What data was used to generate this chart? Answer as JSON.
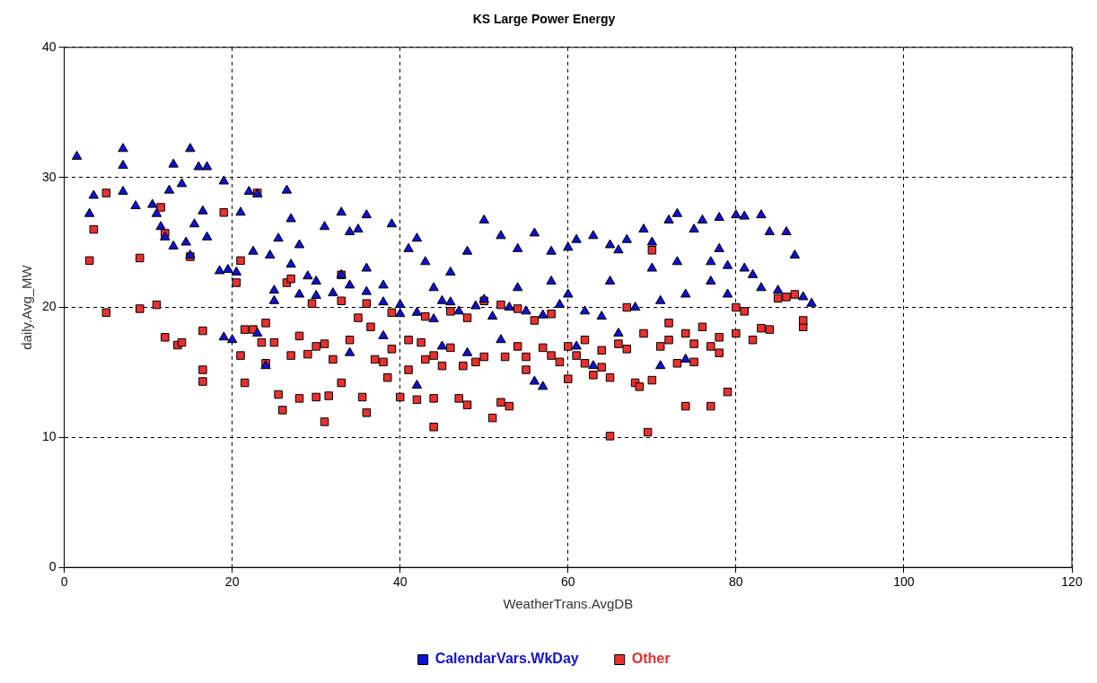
{
  "chart_data": {
    "type": "scatter",
    "title": "KS Large Power Energy",
    "xlabel": "WeatherTrans.AvgDB",
    "ylabel": "daily.Avg_MW",
    "xlim": [
      0,
      120
    ],
    "xticks": [
      0,
      20,
      40,
      60,
      80,
      100,
      120
    ],
    "ylim": [
      0,
      40
    ],
    "yticks": [
      0,
      10,
      20,
      30,
      40
    ],
    "grid": true,
    "legend": "bottom",
    "series": [
      {
        "name": "CalendarVars.WkDay",
        "color": "#1010d0",
        "marker": "triangle",
        "x": [
          1.5,
          3,
          3.5,
          7,
          7,
          7,
          8.5,
          10.5,
          11,
          11.5,
          12,
          12.5,
          13,
          13,
          14,
          14.5,
          15,
          15,
          15.5,
          16,
          16.5,
          17,
          17,
          18.5,
          19,
          19.5,
          20.5,
          21,
          22,
          23,
          22.5,
          24.5,
          25,
          26.5,
          27,
          28,
          30,
          31,
          33,
          34,
          35,
          36,
          38,
          39,
          40,
          41,
          42,
          43,
          45,
          46,
          48,
          50,
          52,
          54,
          56,
          58,
          60,
          61,
          63,
          65,
          66,
          67,
          69,
          70,
          72,
          73,
          75,
          76,
          78,
          80,
          81,
          83,
          84,
          86,
          87,
          88,
          89,
          85,
          82,
          79,
          77,
          74,
          71,
          68,
          64,
          62,
          59,
          57,
          55,
          53,
          51,
          49,
          47,
          44,
          42,
          40,
          38,
          36,
          34,
          32,
          30,
          29,
          27,
          25,
          23,
          24,
          19,
          20,
          42,
          56,
          57,
          63,
          71,
          66,
          74,
          52,
          48,
          45,
          38,
          34,
          61,
          77,
          79,
          83,
          60,
          46,
          36,
          33,
          28,
          25.5,
          44,
          50,
          54,
          58,
          65,
          70,
          73,
          78,
          81
        ],
        "values": [
          31.6,
          27.2,
          28.6,
          32.2,
          30.9,
          28.9,
          27.8,
          27.9,
          27.2,
          26.2,
          25.4,
          29.0,
          31.0,
          24.7,
          29.5,
          25.0,
          32.2,
          24.0,
          26.4,
          30.8,
          27.4,
          30.8,
          25.4,
          22.8,
          29.7,
          22.9,
          22.7,
          27.3,
          28.9,
          28.7,
          24.3,
          24.0,
          21.3,
          29.0,
          26.8,
          21.0,
          22.0,
          26.2,
          27.3,
          25.8,
          26.0,
          27.1,
          21.7,
          26.4,
          19.5,
          24.5,
          25.3,
          23.5,
          20.5,
          22.7,
          24.3,
          26.7,
          25.5,
          24.5,
          25.7,
          24.3,
          24.6,
          25.2,
          25.5,
          24.8,
          24.4,
          25.2,
          26.0,
          25.0,
          26.7,
          27.2,
          26.0,
          26.7,
          26.9,
          27.1,
          27.0,
          27.1,
          25.8,
          25.8,
          24.0,
          20.8,
          20.3,
          21.3,
          22.5,
          23.2,
          22.0,
          21.0,
          20.5,
          20.0,
          19.3,
          19.7,
          20.2,
          19.4,
          19.7,
          20.0,
          19.3,
          20.1,
          19.7,
          19.1,
          19.6,
          20.2,
          20.4,
          21.2,
          21.7,
          21.1,
          20.9,
          22.4,
          23.3,
          20.5,
          18.0,
          15.5,
          17.7,
          17.5,
          14.0,
          14.3,
          13.9,
          15.5,
          15.5,
          18.0,
          16.0,
          17.5,
          16.5,
          17.0,
          17.8,
          16.5,
          17.0,
          23.5,
          21.0,
          21.5,
          21.0,
          20.4,
          23.0,
          22.5,
          24.8,
          25.3,
          21.5,
          20.6,
          21.5,
          22.0,
          22.0,
          23.0,
          23.5,
          24.5,
          23.0
        ]
      },
      {
        "name": "Other",
        "color": "#e8312f",
        "marker": "square",
        "x": [
          3,
          3.5,
          5,
          5,
          9,
          9,
          11,
          11.5,
          12,
          12,
          13.5,
          14,
          15,
          16.5,
          16.5,
          16.5,
          19,
          20.5,
          21,
          21.5,
          21.5,
          21,
          22.5,
          23,
          23.5,
          24,
          24,
          25,
          25.5,
          26,
          26.5,
          27,
          28,
          28,
          29,
          29.5,
          30,
          31,
          31,
          31.5,
          32,
          33,
          33,
          34,
          35,
          35.5,
          36,
          36.5,
          37,
          38,
          38.5,
          39,
          40,
          41,
          42,
          42.5,
          43,
          44,
          44,
          45,
          46,
          47,
          47.5,
          48,
          49,
          50,
          50,
          51,
          52,
          52.5,
          53,
          54,
          55,
          56,
          57,
          58,
          59,
          60,
          61,
          62,
          63,
          64,
          65,
          65,
          66,
          67,
          68,
          68.5,
          69,
          69.5,
          70,
          70,
          71,
          72,
          73,
          74,
          74,
          75,
          76,
          77,
          77,
          78,
          79,
          80,
          80,
          81,
          82,
          83,
          84,
          85,
          86,
          87,
          88,
          88,
          43,
          46,
          48,
          52,
          54,
          58,
          62,
          67,
          72,
          75,
          78,
          36,
          39,
          33,
          27,
          30,
          41,
          44,
          55,
          60,
          64
        ],
        "values": [
          23.6,
          26.0,
          28.8,
          19.6,
          23.8,
          19.9,
          20.2,
          27.7,
          25.7,
          17.7,
          17.1,
          17.3,
          23.9,
          18.2,
          15.2,
          14.3,
          27.3,
          21.9,
          23.6,
          18.3,
          14.2,
          16.3,
          18.3,
          28.8,
          17.3,
          18.8,
          15.7,
          17.3,
          13.3,
          12.1,
          21.9,
          16.3,
          17.8,
          13.0,
          16.4,
          20.3,
          13.1,
          17.2,
          11.2,
          13.2,
          16.0,
          14.2,
          20.5,
          17.5,
          19.2,
          13.1,
          11.9,
          18.5,
          16.0,
          15.8,
          14.6,
          16.8,
          13.1,
          15.2,
          12.9,
          17.3,
          16.0,
          10.8,
          13.0,
          15.5,
          16.9,
          13.0,
          15.5,
          12.5,
          15.8,
          16.2,
          20.5,
          11.5,
          12.7,
          16.2,
          12.4,
          17.0,
          16.2,
          19.0,
          16.9,
          16.3,
          15.8,
          14.5,
          16.3,
          15.7,
          14.8,
          16.7,
          10.1,
          14.6,
          17.2,
          16.8,
          14.2,
          13.9,
          18.0,
          10.4,
          14.4,
          24.4,
          17.0,
          17.5,
          15.7,
          12.4,
          18.0,
          15.8,
          18.5,
          12.4,
          17.0,
          17.7,
          13.5,
          18.0,
          20.0,
          19.7,
          17.5,
          18.4,
          18.3,
          20.7,
          20.8,
          21.0,
          18.5,
          19.0,
          19.3,
          19.7,
          19.2,
          20.2,
          19.9,
          19.5,
          17.5,
          20.0,
          18.8,
          17.2,
          16.5,
          20.3,
          19.6,
          22.5,
          22.2,
          17.0,
          17.5,
          16.3,
          15.2,
          17.0,
          15.4
        ]
      }
    ]
  }
}
